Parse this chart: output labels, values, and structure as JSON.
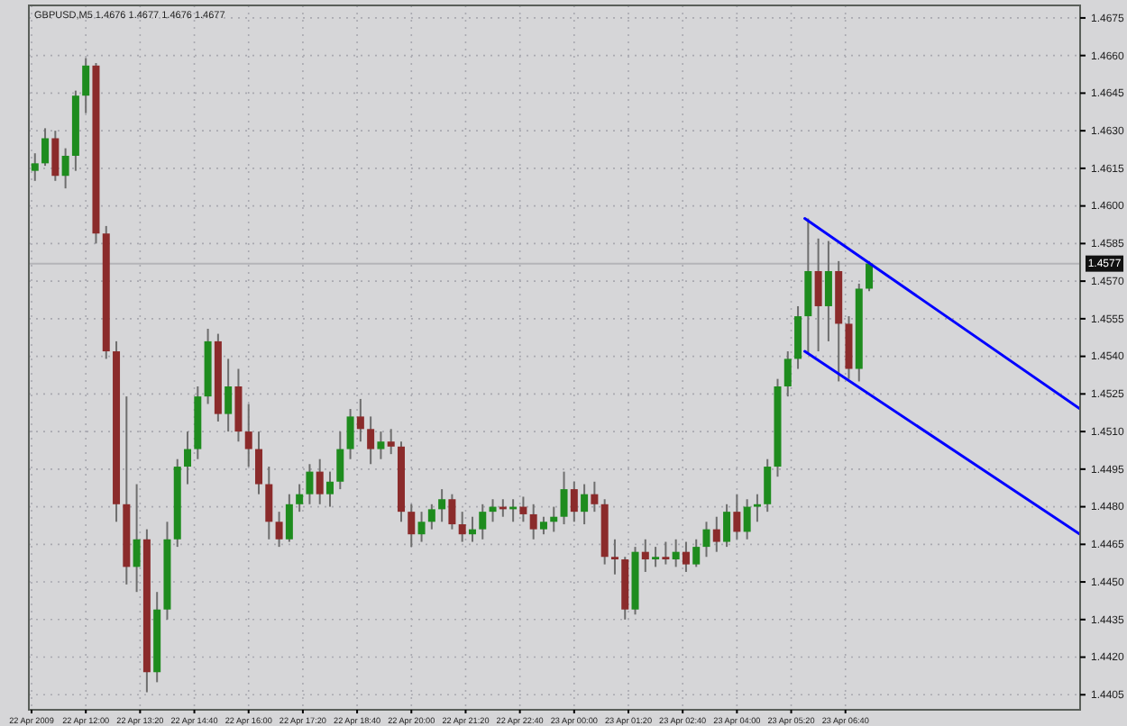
{
  "chart_data": {
    "type": "candlestick",
    "title": "GBPUSD,M5  1.4676 1.4677 1.4676 1.4677",
    "grid": true,
    "xlim": [
      "2009-04-22T10:36",
      "2009-04-23T12:26"
    ],
    "ylim": [
      1.4399,
      1.468
    ],
    "xticks": [
      {
        "value": "2009-04-22T10:40",
        "label": "22 Apr 2009"
      },
      {
        "value": "2009-04-22T12:00",
        "label": "22 Apr 12:00"
      },
      {
        "value": "2009-04-22T13:20",
        "label": "22 Apr 13:20"
      },
      {
        "value": "2009-04-22T14:40",
        "label": "22 Apr 14:40"
      },
      {
        "value": "2009-04-22T16:00",
        "label": "22 Apr 16:00"
      },
      {
        "value": "2009-04-22T17:20",
        "label": "22 Apr 17:20"
      },
      {
        "value": "2009-04-22T18:40",
        "label": "22 Apr 18:40"
      },
      {
        "value": "2009-04-22T20:00",
        "label": "22 Apr 20:00"
      },
      {
        "value": "2009-04-22T21:20",
        "label": "22 Apr 21:20"
      },
      {
        "value": "2009-04-22T22:40",
        "label": "22 Apr 22:40"
      },
      {
        "value": "2009-04-23T00:00",
        "label": "23 Apr 00:00"
      },
      {
        "value": "2009-04-23T01:20",
        "label": "23 Apr 01:20"
      },
      {
        "value": "2009-04-23T02:40",
        "label": "23 Apr 02:40"
      },
      {
        "value": "2009-04-23T04:00",
        "label": "23 Apr 04:00"
      },
      {
        "value": "2009-04-23T05:20",
        "label": "23 Apr 05:20"
      },
      {
        "value": "2009-04-23T06:40",
        "label": "23 Apr 06:40"
      }
    ],
    "yticks": [
      {
        "value": 1.4405,
        "label": "1.4405"
      },
      {
        "value": 1.442,
        "label": "1.4420"
      },
      {
        "value": 1.4435,
        "label": "1.4435"
      },
      {
        "value": 1.445,
        "label": "1.4450"
      },
      {
        "value": 1.4465,
        "label": "1.4465"
      },
      {
        "value": 1.448,
        "label": "1.4480"
      },
      {
        "value": 1.4495,
        "label": "1.4495"
      },
      {
        "value": 1.451,
        "label": "1.4510"
      },
      {
        "value": 1.4525,
        "label": "1.4525"
      },
      {
        "value": 1.454,
        "label": "1.4540"
      },
      {
        "value": 1.4555,
        "label": "1.4555"
      },
      {
        "value": 1.457,
        "label": "1.4570"
      },
      {
        "value": 1.4585,
        "label": "1.4585"
      },
      {
        "value": 1.46,
        "label": "1.4600"
      },
      {
        "value": 1.4615,
        "label": "1.4615"
      },
      {
        "value": 1.463,
        "label": "1.4630"
      },
      {
        "value": 1.4645,
        "label": "1.4645"
      },
      {
        "value": 1.466,
        "label": "1.4660"
      },
      {
        "value": 1.4675,
        "label": "1.4675"
      }
    ],
    "ref_lines": [
      {
        "axis": "y",
        "value": 1.4577,
        "label": "1.4577",
        "color": "#b4b4b8"
      }
    ],
    "series": [
      {
        "x": [
          "2009-04-22T10:45",
          "2009-04-22T11:00",
          "2009-04-22T11:15",
          "2009-04-22T11:30",
          "2009-04-22T11:45",
          "2009-04-22T12:00",
          "2009-04-22T12:15",
          "2009-04-22T12:30",
          "2009-04-22T12:45",
          "2009-04-22T13:00",
          "2009-04-22T13:15",
          "2009-04-22T13:30",
          "2009-04-22T13:45",
          "2009-04-22T14:00",
          "2009-04-22T14:15",
          "2009-04-22T14:30",
          "2009-04-22T14:45",
          "2009-04-22T15:00",
          "2009-04-22T15:15",
          "2009-04-22T15:30",
          "2009-04-22T15:45",
          "2009-04-22T16:00",
          "2009-04-22T16:15",
          "2009-04-22T16:30",
          "2009-04-22T16:45",
          "2009-04-22T17:00",
          "2009-04-22T17:15",
          "2009-04-22T17:30",
          "2009-04-22T17:45",
          "2009-04-22T18:00",
          "2009-04-22T18:15",
          "2009-04-22T18:30",
          "2009-04-22T18:45",
          "2009-04-22T19:00",
          "2009-04-22T19:15",
          "2009-04-22T19:30",
          "2009-04-22T19:45",
          "2009-04-22T20:00",
          "2009-04-22T20:15",
          "2009-04-22T20:30",
          "2009-04-22T20:45",
          "2009-04-22T21:00",
          "2009-04-22T21:15",
          "2009-04-22T21:30",
          "2009-04-22T21:45",
          "2009-04-22T22:00",
          "2009-04-22T22:15",
          "2009-04-22T22:30",
          "2009-04-22T22:45",
          "2009-04-22T23:00",
          "2009-04-22T23:15",
          "2009-04-22T23:30",
          "2009-04-22T23:45",
          "2009-04-23T00:00",
          "2009-04-23T00:15",
          "2009-04-23T00:30",
          "2009-04-23T00:45",
          "2009-04-23T01:00",
          "2009-04-23T01:15",
          "2009-04-23T01:30",
          "2009-04-23T01:45",
          "2009-04-23T02:00",
          "2009-04-23T02:15",
          "2009-04-23T02:30",
          "2009-04-23T02:45",
          "2009-04-23T03:00",
          "2009-04-23T03:15",
          "2009-04-23T03:30",
          "2009-04-23T03:45",
          "2009-04-23T04:00",
          "2009-04-23T04:15",
          "2009-04-23T04:30",
          "2009-04-23T04:45",
          "2009-04-23T05:00",
          "2009-04-23T05:15",
          "2009-04-23T05:30",
          "2009-04-23T05:45",
          "2009-04-23T06:00",
          "2009-04-23T06:15",
          "2009-04-23T06:30",
          "2009-04-23T06:45",
          "2009-04-23T07:00",
          "2009-04-23T07:15"
        ],
        "ohlc": [
          [
            1.4614,
            1.4621,
            1.461,
            1.4617
          ],
          [
            1.4617,
            1.4631,
            1.4616,
            1.4627
          ],
          [
            1.4627,
            1.463,
            1.461,
            1.4612
          ],
          [
            1.4612,
            1.4623,
            1.4607,
            1.462
          ],
          [
            1.462,
            1.4646,
            1.4614,
            1.4644
          ],
          [
            1.4644,
            1.4659,
            1.4637,
            1.4656
          ],
          [
            1.4656,
            1.4657,
            1.4585,
            1.4589
          ],
          [
            1.4589,
            1.4592,
            1.4539,
            1.4542
          ],
          [
            1.4542,
            1.4546,
            1.4474,
            1.4481
          ],
          [
            1.4481,
            1.4524,
            1.4449,
            1.4456
          ],
          [
            1.4456,
            1.4489,
            1.4446,
            1.4467
          ],
          [
            1.4467,
            1.4471,
            1.4406,
            1.4414
          ],
          [
            1.4414,
            1.4446,
            1.441,
            1.4439
          ],
          [
            1.4439,
            1.4474,
            1.4435,
            1.4467
          ],
          [
            1.4467,
            1.4499,
            1.4464,
            1.4496
          ],
          [
            1.4496,
            1.451,
            1.4489,
            1.4503
          ],
          [
            1.4503,
            1.4528,
            1.4499,
            1.4524
          ],
          [
            1.4524,
            1.4551,
            1.4521,
            1.4546
          ],
          [
            1.4546,
            1.4549,
            1.4514,
            1.4517
          ],
          [
            1.4517,
            1.4539,
            1.451,
            1.4528
          ],
          [
            1.4528,
            1.4535,
            1.4506,
            1.451
          ],
          [
            1.451,
            1.4521,
            1.4496,
            1.4503
          ],
          [
            1.4503,
            1.451,
            1.4485,
            1.4489
          ],
          [
            1.4489,
            1.4496,
            1.4467,
            1.4474
          ],
          [
            1.4474,
            1.4478,
            1.4464,
            1.4467
          ],
          [
            1.4467,
            1.4485,
            1.4466,
            1.4481
          ],
          [
            1.4481,
            1.4489,
            1.4478,
            1.4485
          ],
          [
            1.4485,
            1.4497,
            1.4481,
            1.4494
          ],
          [
            1.4494,
            1.4499,
            1.4481,
            1.4485
          ],
          [
            1.4485,
            1.4494,
            1.448,
            1.449
          ],
          [
            1.449,
            1.451,
            1.4487,
            1.4503
          ],
          [
            1.4503,
            1.4519,
            1.4499,
            1.4516
          ],
          [
            1.4516,
            1.4523,
            1.4506,
            1.4511
          ],
          [
            1.4511,
            1.4516,
            1.4497,
            1.4503
          ],
          [
            1.4503,
            1.451,
            1.4499,
            1.4506
          ],
          [
            1.4506,
            1.4511,
            1.4501,
            1.4504
          ],
          [
            1.4504,
            1.4506,
            1.4474,
            1.4478
          ],
          [
            1.4478,
            1.4481,
            1.4464,
            1.4469
          ],
          [
            1.4469,
            1.4478,
            1.4466,
            1.4474
          ],
          [
            1.4474,
            1.4481,
            1.4471,
            1.4479
          ],
          [
            1.4479,
            1.4487,
            1.4474,
            1.4483
          ],
          [
            1.4483,
            1.4485,
            1.4471,
            1.4473
          ],
          [
            1.4473,
            1.4478,
            1.4466,
            1.4469
          ],
          [
            1.4469,
            1.4476,
            1.4466,
            1.4471
          ],
          [
            1.4471,
            1.4481,
            1.4467,
            1.4478
          ],
          [
            1.4478,
            1.4483,
            1.4474,
            1.448
          ],
          [
            1.448,
            1.4483,
            1.4476,
            1.4479
          ],
          [
            1.4479,
            1.4483,
            1.4474,
            1.448
          ],
          [
            1.448,
            1.4484,
            1.4474,
            1.4477
          ],
          [
            1.4477,
            1.4481,
            1.4467,
            1.4471
          ],
          [
            1.4471,
            1.4476,
            1.4469,
            1.4474
          ],
          [
            1.4474,
            1.448,
            1.447,
            1.4476
          ],
          [
            1.4476,
            1.4494,
            1.4473,
            1.4487
          ],
          [
            1.4487,
            1.449,
            1.4474,
            1.4478
          ],
          [
            1.4478,
            1.4489,
            1.4473,
            1.4485
          ],
          [
            1.4485,
            1.449,
            1.4478,
            1.4481
          ],
          [
            1.4481,
            1.4483,
            1.4457,
            1.446
          ],
          [
            1.446,
            1.4467,
            1.4453,
            1.4459
          ],
          [
            1.4459,
            1.446,
            1.4435,
            1.4439
          ],
          [
            1.4439,
            1.4464,
            1.4437,
            1.4462
          ],
          [
            1.4462,
            1.4467,
            1.4454,
            1.4459
          ],
          [
            1.4459,
            1.4464,
            1.4456,
            1.446
          ],
          [
            1.446,
            1.4466,
            1.4457,
            1.4459
          ],
          [
            1.4459,
            1.4467,
            1.4456,
            1.4462
          ],
          [
            1.4462,
            1.4466,
            1.4454,
            1.4457
          ],
          [
            1.4457,
            1.4467,
            1.4456,
            1.4464
          ],
          [
            1.4464,
            1.4474,
            1.446,
            1.4471
          ],
          [
            1.4471,
            1.4476,
            1.4462,
            1.4466
          ],
          [
            1.4466,
            1.4481,
            1.4464,
            1.4478
          ],
          [
            1.4478,
            1.4485,
            1.4467,
            1.447
          ],
          [
            1.447,
            1.4483,
            1.4467,
            1.448
          ],
          [
            1.448,
            1.4485,
            1.4474,
            1.4481
          ],
          [
            1.4481,
            1.4499,
            1.4478,
            1.4496
          ],
          [
            1.4496,
            1.4531,
            1.4492,
            1.4528
          ],
          [
            1.4528,
            1.4542,
            1.4524,
            1.4539
          ],
          [
            1.4539,
            1.456,
            1.4535,
            1.4556
          ],
          [
            1.4556,
            1.4595,
            1.4541,
            1.4574
          ],
          [
            1.4574,
            1.4587,
            1.4542,
            1.456
          ],
          [
            1.456,
            1.4586,
            1.4546,
            1.4574
          ],
          [
            1.4574,
            1.4578,
            1.453,
            1.4553
          ],
          [
            1.4553,
            1.4556,
            1.4531,
            1.4535
          ],
          [
            1.4535,
            1.4569,
            1.453,
            1.4567
          ],
          [
            1.4567,
            1.4578,
            1.4566,
            1.4577
          ]
        ],
        "colors": [
          "#1e8c1e",
          "#1e8c1e",
          "#8b2b2b",
          "#1e8c1e",
          "#1e8c1e",
          "#1e8c1e",
          "#8b2b2b",
          "#8b2b2b",
          "#8b2b2b",
          "#8b2b2b",
          "#1e8c1e",
          "#8b2b2b",
          "#1e8c1e",
          "#1e8c1e",
          "#1e8c1e",
          "#1e8c1e",
          "#1e8c1e",
          "#1e8c1e",
          "#8b2b2b",
          "#1e8c1e",
          "#8b2b2b",
          "#8b2b2b",
          "#8b2b2b",
          "#8b2b2b",
          "#8b2b2b",
          "#1e8c1e",
          "#1e8c1e",
          "#1e8c1e",
          "#8b2b2b",
          "#1e8c1e",
          "#1e8c1e",
          "#1e8c1e",
          "#8b2b2b",
          "#8b2b2b",
          "#1e8c1e",
          "#8b2b2b",
          "#8b2b2b",
          "#8b2b2b",
          "#1e8c1e",
          "#1e8c1e",
          "#1e8c1e",
          "#8b2b2b",
          "#8b2b2b",
          "#1e8c1e",
          "#1e8c1e",
          "#1e8c1e",
          "#8b2b2b",
          "#1e8c1e",
          "#8b2b2b",
          "#8b2b2b",
          "#1e8c1e",
          "#1e8c1e",
          "#1e8c1e",
          "#8b2b2b",
          "#1e8c1e",
          "#8b2b2b",
          "#8b2b2b",
          "#8b2b2b",
          "#8b2b2b",
          "#1e8c1e",
          "#8b2b2b",
          "#1e8c1e",
          "#8b2b2b",
          "#1e8c1e",
          "#8b2b2b",
          "#1e8c1e",
          "#1e8c1e",
          "#8b2b2b",
          "#1e8c1e",
          "#8b2b2b",
          "#1e8c1e",
          "#1e8c1e",
          "#1e8c1e",
          "#1e8c1e",
          "#1e8c1e",
          "#1e8c1e",
          "#1e8c1e",
          "#8b2b2b",
          "#1e8c1e",
          "#8b2b2b",
          "#8b2b2b",
          "#1e8c1e",
          "#1e8c1e"
        ]
      },
      {
        "type": "line",
        "color": "#0000ff",
        "x": [
          "2009-04-23T05:40",
          "2009-04-23T12:26"
        ],
        "values": [
          1.4595,
          1.4519
        ]
      },
      {
        "type": "line",
        "color": "#0000ff",
        "x": [
          "2009-04-23T05:40",
          "2009-04-23T12:26"
        ],
        "values": [
          1.4542,
          1.4469
        ]
      }
    ]
  }
}
